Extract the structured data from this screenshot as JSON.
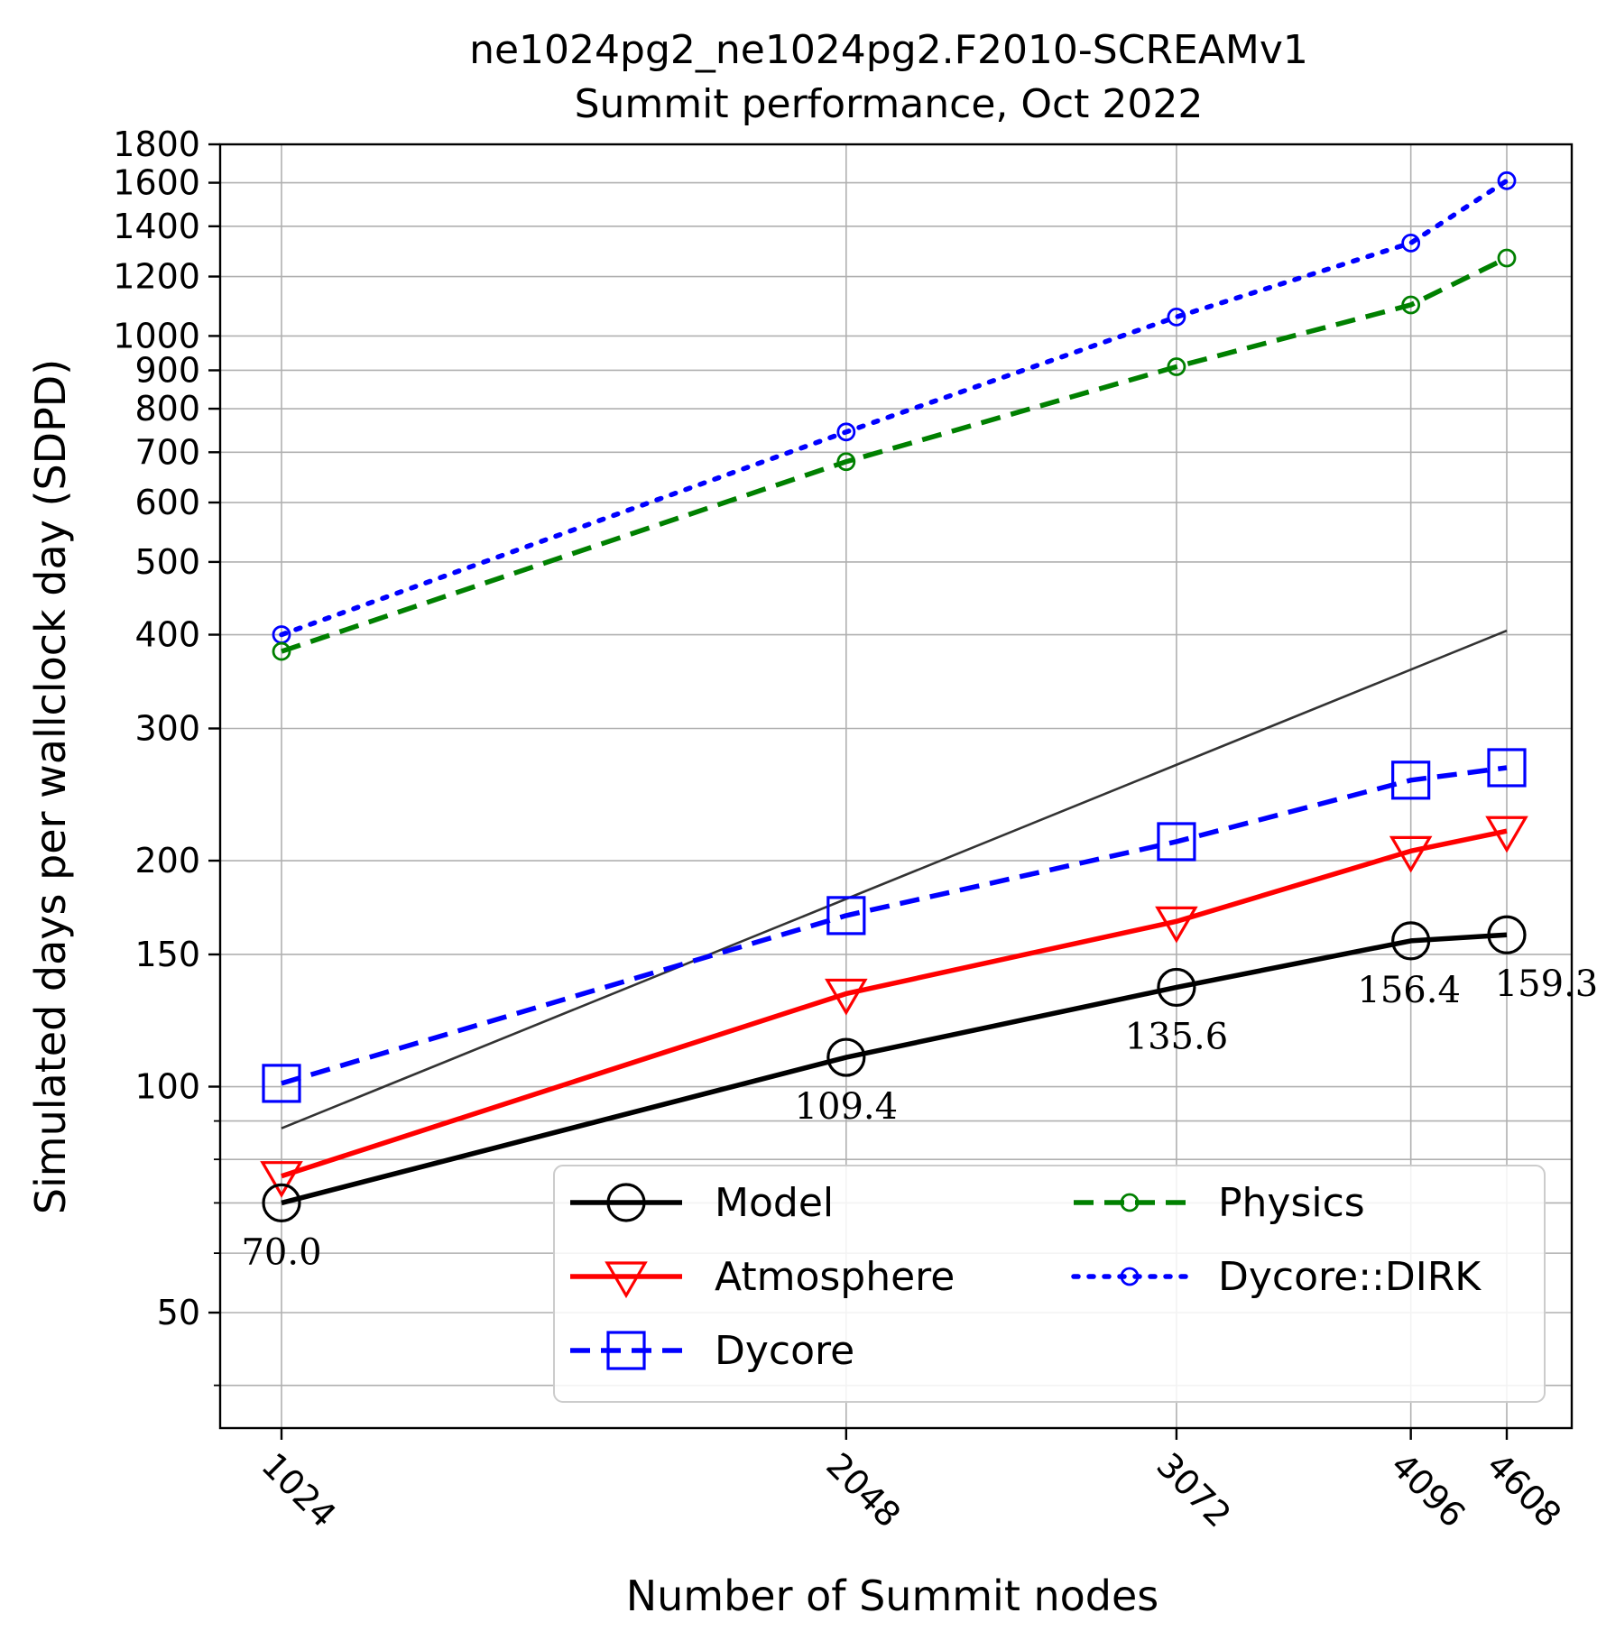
{
  "chart_data": {
    "type": "line",
    "title": "ne1024pg2_ne1024pg2.F2010-SCREAMv1",
    "subtitle": "Summit performance, Oct 2022",
    "xlabel": "Number of Summit nodes",
    "ylabel": "Simulated days per wallclock day (SDPD)",
    "x_scale": "log",
    "y_scale": "log",
    "xlim": [
      900,
      5200
    ],
    "ylim": [
      37,
      1800
    ],
    "x": [
      1024,
      2048,
      3072,
      4096,
      4608
    ],
    "x_tick_labels": [
      "1024",
      "2048",
      "3072",
      "4096",
      "4608"
    ],
    "y_ticks": [
      50,
      100,
      150,
      200,
      300,
      400,
      500,
      600,
      700,
      800,
      900,
      1000,
      1200,
      1400,
      1600,
      1800
    ],
    "y_tick_labels": [
      "50",
      "100",
      "150",
      "200",
      "300",
      "400",
      "500",
      "600",
      "700",
      "800",
      "900",
      "1000",
      "1200",
      "1400",
      "1600",
      "1800"
    ],
    "y_minor_ticks": [
      40,
      60,
      70,
      80,
      90
    ],
    "grid": true,
    "legend_position": "lower-right",
    "series": [
      {
        "name": "Model",
        "values": [
          70.0,
          109.4,
          135.6,
          156.4,
          159.3
        ],
        "color": "#000000",
        "marker": "circle",
        "linestyle": "solid",
        "data_labels": [
          "70.0",
          "109.4",
          "135.6",
          "156.4",
          "159.3"
        ]
      },
      {
        "name": "Atmosphere",
        "values": [
          76,
          133,
          166,
          206,
          219
        ],
        "color": "#ff0000",
        "marker": "triangle-down",
        "linestyle": "solid"
      },
      {
        "name": "Dycore",
        "values": [
          101,
          169,
          212,
          256,
          266
        ],
        "color": "#0000ff",
        "marker": "square",
        "linestyle": "dashed"
      },
      {
        "name": "Physics",
        "values": [
          380,
          680,
          910,
          1100,
          1270
        ],
        "color": "#008000",
        "marker": "small-circle",
        "linestyle": "dashed"
      },
      {
        "name": "Dycore::DIRK",
        "values": [
          400,
          745,
          1060,
          1330,
          1610
        ],
        "color": "#0000ff",
        "marker": "small-circle",
        "linestyle": "dotted"
      }
    ],
    "reference_line": {
      "x": [
        1024,
        4608
      ],
      "values": [
        88,
        405
      ],
      "color": "#333333"
    }
  }
}
